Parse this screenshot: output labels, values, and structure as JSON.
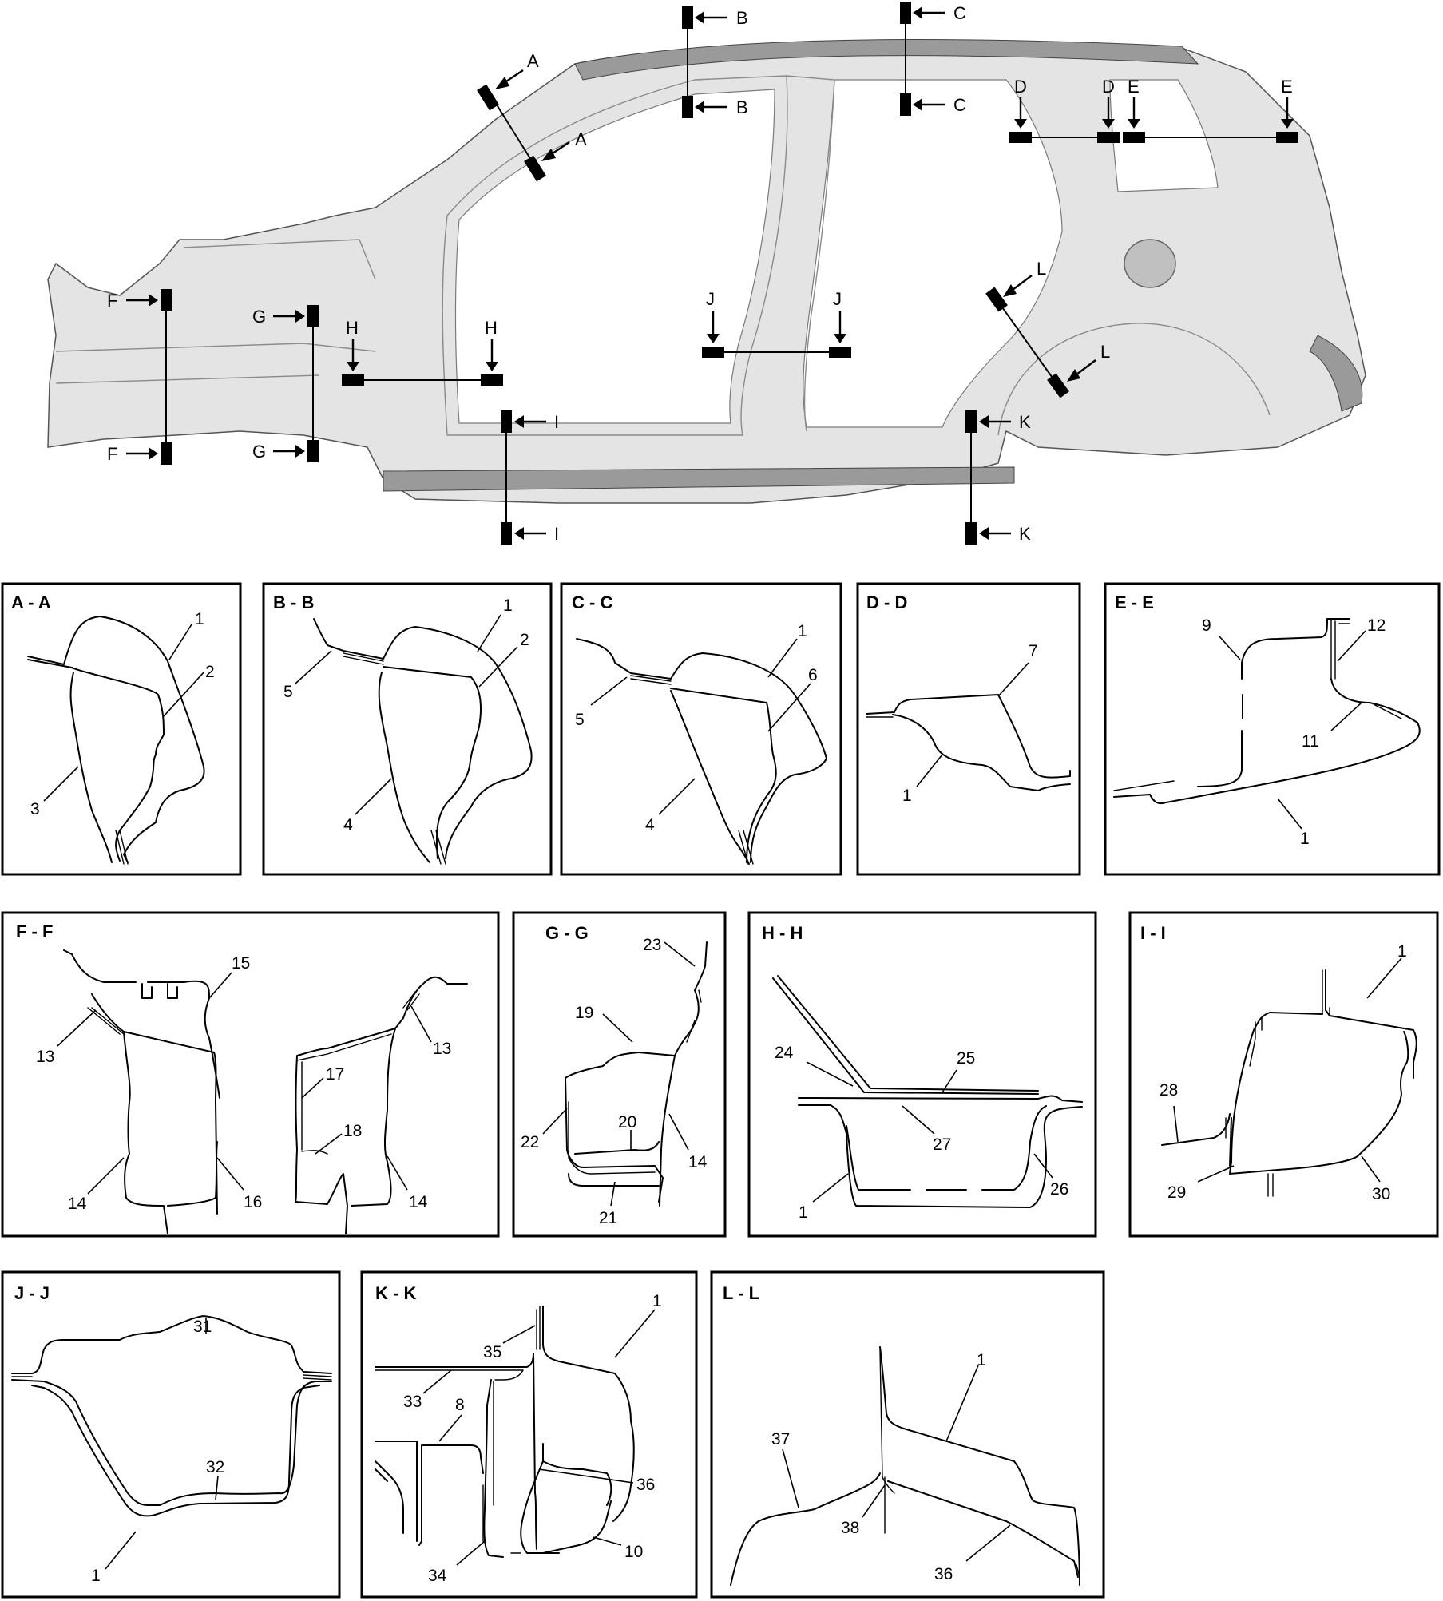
{
  "title": "",
  "cut_lines": [
    {
      "id": "A",
      "label": "A"
    },
    {
      "id": "B",
      "label": "B"
    },
    {
      "id": "C",
      "label": "C"
    },
    {
      "id": "D",
      "label": "D"
    },
    {
      "id": "E",
      "label": "E"
    },
    {
      "id": "F",
      "label": "F"
    },
    {
      "id": "G",
      "label": "G"
    },
    {
      "id": "H",
      "label": "H"
    },
    {
      "id": "I",
      "label": "I"
    },
    {
      "id": "J",
      "label": "J"
    },
    {
      "id": "K",
      "label": "K"
    },
    {
      "id": "L",
      "label": "L"
    }
  ],
  "sections": {
    "AA": {
      "title": "A - A",
      "callouts": [
        "1",
        "2",
        "3"
      ]
    },
    "BB": {
      "title": "B - B",
      "callouts": [
        "1",
        "2",
        "5",
        "4"
      ]
    },
    "CC": {
      "title": "C - C",
      "callouts": [
        "1",
        "6",
        "5",
        "4"
      ]
    },
    "DD": {
      "title": "D - D",
      "callouts": [
        "7",
        "1"
      ]
    },
    "EE": {
      "title": "E - E",
      "callouts": [
        "9",
        "12",
        "11",
        "1"
      ]
    },
    "FF": {
      "title": "F - F",
      "callouts": [
        "15",
        "13",
        "13",
        "17",
        "18",
        "14",
        "16",
        "14"
      ]
    },
    "GG": {
      "title": "G - G",
      "callouts": [
        "23",
        "19",
        "20",
        "22",
        "14",
        "21"
      ]
    },
    "HH": {
      "title": "H - H",
      "callouts": [
        "25",
        "24",
        "27",
        "26",
        "1"
      ]
    },
    "II": {
      "title": "I  - I",
      "callouts": [
        "1",
        "28",
        "29",
        "30"
      ]
    },
    "JJ": {
      "title": "J - J",
      "callouts": [
        "31",
        "32",
        "1"
      ]
    },
    "KK": {
      "title": "K - K",
      "callouts": [
        "1",
        "35",
        "33",
        "8",
        "36",
        "34",
        "10"
      ]
    },
    "LL": {
      "title": "L - L",
      "callouts": [
        "1",
        "37",
        "38",
        "36"
      ]
    }
  }
}
